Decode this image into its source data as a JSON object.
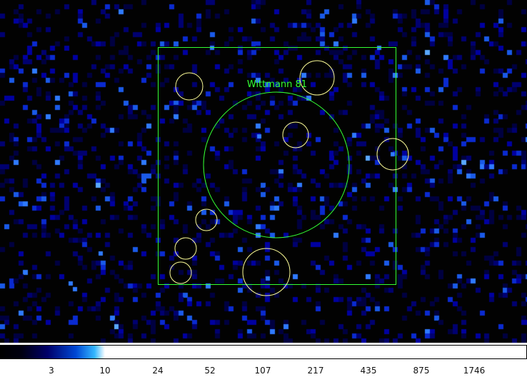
{
  "image": {
    "background_color": "#020202",
    "pixel_colors": [
      "#000040",
      "#000070",
      "#0000a0",
      "#0a2ad0",
      "#1a5ae8",
      "#2f7aff",
      "#5aa8ff"
    ]
  },
  "regions": {
    "source_label": "Wittmann 81",
    "source_color": "#33ff33",
    "exclusion_color": "#ffff99"
  },
  "colorbar": {
    "ticks": [
      "3",
      "10",
      "24",
      "52",
      "107",
      "217",
      "435",
      "875",
      "1746"
    ]
  }
}
